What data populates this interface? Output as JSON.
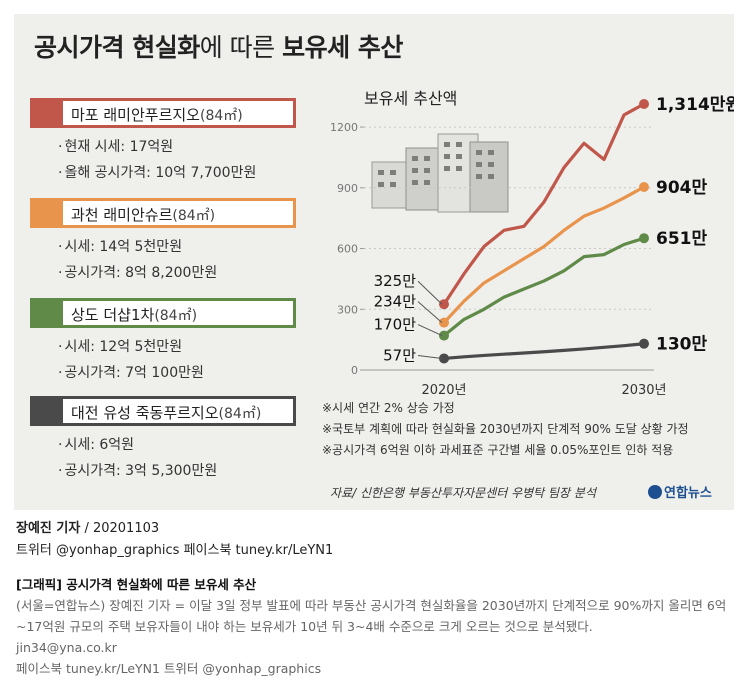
{
  "title": {
    "normal_1": "공시가격 현실화",
    "light": "에 따른 ",
    "bold_2": "보유세 추산"
  },
  "cards": [
    {
      "name": "마포 래미안푸르지오",
      "size": "(84㎡)",
      "color": "#c0574a",
      "lines": [
        "현재 시세: 17억원",
        "올해 공시가격: 10억 7,700만원"
      ]
    },
    {
      "name": "과천 래미안슈르",
      "size": "(84㎡)",
      "color": "#e8944c",
      "lines": [
        "시세: 14억 5천만원",
        "공시가격: 8억 8,200만원"
      ]
    },
    {
      "name": "상도 더샵1차",
      "size": "(84㎡)",
      "color": "#5f8a48",
      "lines": [
        "시세: 12억 5천만원",
        "공시가격: 7억 100만원"
      ]
    },
    {
      "name": "대전 유성 죽동푸르지오",
      "size": "(84㎡)",
      "color": "#4a4a4a",
      "lines": [
        "시세: 6억원",
        "공시가격: 3억 5,300만원"
      ]
    }
  ],
  "chart_data": {
    "type": "line",
    "title": "보유세 추산액",
    "x": [
      2020,
      2021,
      2022,
      2023,
      2024,
      2025,
      2026,
      2027,
      2028,
      2029,
      2030
    ],
    "xticks": [
      "2020년",
      "2030년"
    ],
    "ylim": [
      0,
      1314
    ],
    "yticks": [
      0,
      300,
      600,
      900,
      1200
    ],
    "ytick_labels": [
      "0",
      "300",
      "600",
      "900",
      "1200"
    ],
    "series": [
      {
        "name": "마포 래미안푸르지오",
        "color": "#c0574a",
        "values": [
          325,
          475,
          610,
          690,
          710,
          830,
          1000,
          1120,
          1040,
          1260,
          1314
        ],
        "start_label": "325만",
        "end_label": "1,314만원"
      },
      {
        "name": "과천 래미안슈르",
        "color": "#e8944c",
        "values": [
          234,
          340,
          430,
          490,
          550,
          610,
          690,
          760,
          800,
          850,
          904
        ],
        "start_label": "234만",
        "end_label": "904만"
      },
      {
        "name": "상도 더샵1차",
        "color": "#5f8a48",
        "values": [
          170,
          250,
          300,
          360,
          400,
          440,
          490,
          560,
          570,
          620,
          651
        ],
        "start_label": "170만",
        "end_label": "651만"
      },
      {
        "name": "대전 유성 죽동푸르지오",
        "color": "#4a4a4a",
        "values": [
          57,
          65,
          72,
          78,
          84,
          90,
          97,
          104,
          112,
          120,
          130
        ],
        "start_label": "57만",
        "end_label": "130만"
      }
    ]
  },
  "notes": [
    "※시세 연간 2% 상승 가정",
    "※국토부 계획에 따라 현실화율 2030년까지 단계적 90% 도달 상황 가정",
    "※공시가격 6억원 이하 과세표준 구간별 세율 0.05%포인트 인하 적용"
  ],
  "source": "자료/ 신한은행 부동산투자자문센터 우병탁 팀장 분석",
  "logo": "연합뉴스",
  "byline": {
    "name": "장예진 기자",
    "date": " / 20201103",
    "social": "트위터 @yonhap_graphics  페이스북 tuney.kr/LeYN1"
  },
  "article": {
    "head": "[그래픽] 공시가격 현실화에 따른 보유세 추산",
    "body": "(서울=연합뉴스) 장예진 기자 = 이달 3일 정부 발표에 따라 부동산 공시가격 현실화율을 2030년까지 단계적으로 90%까지 올리면 6억~17억원 규모의 주택 보유자들이 내야 하는 보유세가 10년 뒤 3~4배 수준으로 크게 오르는 것으로 분석됐다.",
    "email": "jin34@yna.co.kr",
    "social": "페이스북 tuney.kr/LeYN1 트위터 @yonhap_graphics"
  }
}
